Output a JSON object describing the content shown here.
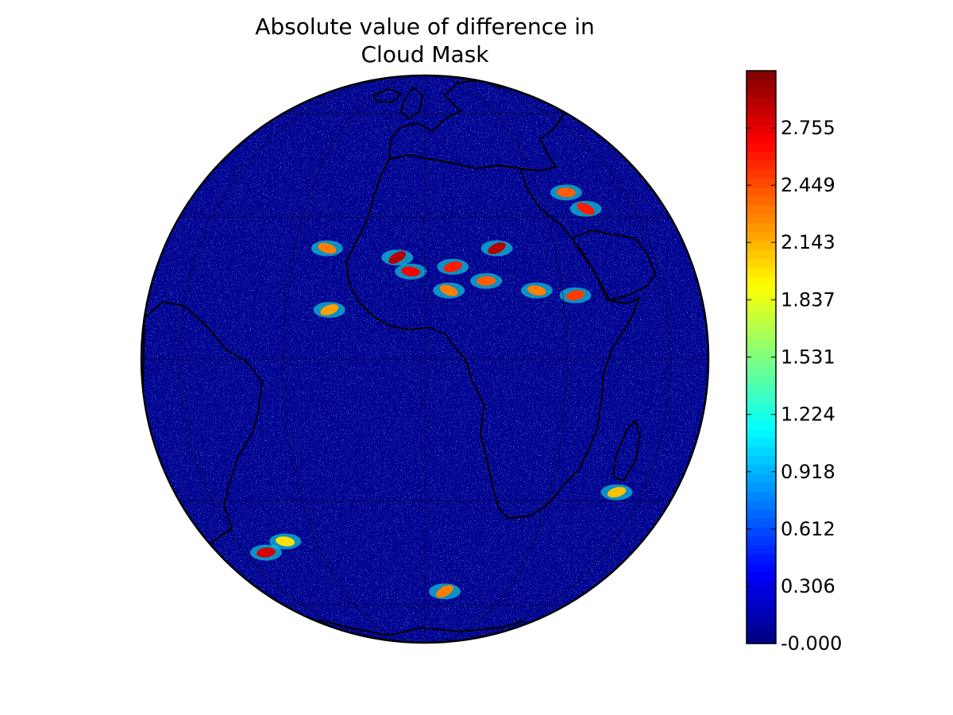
{
  "figure": {
    "title_line1": "Absolute value of difference in",
    "title_line2": "Cloud Mask"
  },
  "map": {
    "projection": "orthographic",
    "center": {
      "lon": 0,
      "lat": 0
    },
    "background_color": "#00008f",
    "graticule": {
      "lon_lines": [
        -60,
        -30,
        0,
        30,
        60
      ],
      "lat_lines": [
        -60,
        -30,
        0,
        30,
        60
      ],
      "style": "dotted",
      "color": "#000000"
    },
    "coastline_color": "#000000",
    "high_difference_regions": [
      {
        "lon": -6,
        "lat": 21,
        "level": 2.9
      },
      {
        "lon": -3,
        "lat": 18,
        "level": 2.7
      },
      {
        "lon": 6,
        "lat": 19,
        "level": 2.6
      },
      {
        "lon": 5,
        "lat": 14,
        "level": 2.3
      },
      {
        "lon": 13,
        "lat": 16,
        "level": 2.4
      },
      {
        "lon": 16,
        "lat": 23,
        "level": 2.9
      },
      {
        "lon": 24,
        "lat": 14,
        "level": 2.3
      },
      {
        "lon": 33,
        "lat": 13,
        "level": 2.5
      },
      {
        "lon": 42,
        "lat": 32,
        "level": 2.6
      },
      {
        "lon": 38,
        "lat": 36,
        "level": 2.4
      },
      {
        "lon": -20,
        "lat": 10,
        "level": 2.2
      },
      {
        "lon": -22,
        "lat": 23,
        "level": 2.3
      },
      {
        "lon": -50,
        "lat": -43,
        "level": 2.8
      },
      {
        "lon": 7,
        "lat": -55,
        "level": 2.3
      },
      {
        "lon": -40,
        "lat": -40,
        "level": 2.0
      },
      {
        "lon": 50,
        "lat": -28,
        "level": 2.1
      }
    ]
  },
  "colorbar": {
    "colormap": "jet",
    "min": 0,
    "max": 3.061,
    "tick_labels": [
      "-0.000",
      "0.306",
      "0.612",
      "0.918",
      "1.224",
      "1.531",
      "1.837",
      "2.143",
      "2.449",
      "2.755"
    ],
    "tick_values": [
      0,
      0.306,
      0.612,
      0.918,
      1.224,
      1.531,
      1.837,
      2.143,
      2.449,
      2.755
    ]
  }
}
